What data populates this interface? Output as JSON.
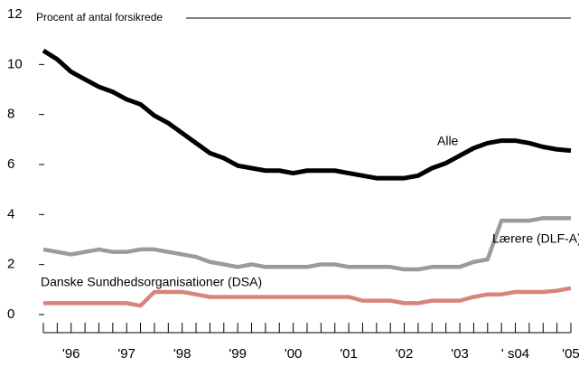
{
  "chart_data": {
    "type": "line",
    "y_label": "Procent af antal forsikrede",
    "x": [
      1996,
      1996.25,
      1996.5,
      1996.75,
      1997,
      1997.25,
      1997.5,
      1997.75,
      1998,
      1998.25,
      1998.5,
      1998.75,
      1999,
      1999.25,
      1999.5,
      1999.75,
      2000,
      2000.25,
      2000.5,
      2000.75,
      2001,
      2001.25,
      2001.5,
      2001.75,
      2002,
      2002.25,
      2002.5,
      2002.75,
      2003,
      2003.25,
      2003.5,
      2003.75,
      2004,
      2004.25,
      2004.5,
      2004.75,
      2005,
      2005.25,
      2005.5
    ],
    "xlim": [
      1996,
      2005.5
    ],
    "xticks": [
      {
        "value": 1996.5,
        "label": "'96"
      },
      {
        "value": 1997.5,
        "label": "'97"
      },
      {
        "value": 1998.5,
        "label": "'98"
      },
      {
        "value": 1999.5,
        "label": "'99"
      },
      {
        "value": 2000.5,
        "label": "'00"
      },
      {
        "value": 2001.5,
        "label": "'01"
      },
      {
        "value": 2002.5,
        "label": "'02"
      },
      {
        "value": 2003.5,
        "label": "'03"
      },
      {
        "value": 2004.5,
        "label": "' s04"
      },
      {
        "value": 2005.5,
        "label": "'05"
      }
    ],
    "ylim": [
      0,
      12
    ],
    "yticks": [
      0,
      2,
      4,
      6,
      8,
      10,
      12
    ],
    "series": [
      {
        "name": "Alle",
        "color": "#000000",
        "values": [
          10.7,
          10.35,
          9.85,
          9.55,
          9.25,
          9.05,
          8.75,
          8.55,
          8.1,
          7.8,
          7.4,
          7.0,
          6.6,
          6.4,
          6.1,
          6.0,
          5.9,
          5.9,
          5.8,
          5.9,
          5.9,
          5.9,
          5.8,
          5.7,
          5.6,
          5.6,
          5.6,
          5.7,
          6.0,
          6.2,
          6.5,
          6.8,
          7.0,
          7.1,
          7.1,
          7.0,
          6.85,
          6.75,
          6.7
        ]
      },
      {
        "name": "Lærere (DLF-A)",
        "color": "#9b9b9b",
        "values": [
          2.75,
          2.65,
          2.55,
          2.65,
          2.75,
          2.65,
          2.65,
          2.75,
          2.75,
          2.65,
          2.55,
          2.45,
          2.25,
          2.15,
          2.05,
          2.15,
          2.05,
          2.05,
          2.05,
          2.05,
          2.15,
          2.15,
          2.05,
          2.05,
          2.05,
          2.05,
          1.95,
          1.95,
          2.05,
          2.05,
          2.05,
          2.25,
          2.35,
          3.9,
          3.9,
          3.9,
          4.0,
          4.0,
          4.0
        ]
      },
      {
        "name": "Danske Sundhedsorganisationer (DSA)",
        "color": "#d9837d",
        "values": [
          0.6,
          0.6,
          0.6,
          0.6,
          0.6,
          0.6,
          0.6,
          0.5,
          1.05,
          1.05,
          1.05,
          0.95,
          0.85,
          0.85,
          0.85,
          0.85,
          0.85,
          0.85,
          0.85,
          0.85,
          0.85,
          0.85,
          0.85,
          0.7,
          0.7,
          0.7,
          0.6,
          0.6,
          0.7,
          0.7,
          0.7,
          0.85,
          0.95,
          0.95,
          1.05,
          1.05,
          1.05,
          1.1,
          1.2
        ]
      }
    ]
  }
}
